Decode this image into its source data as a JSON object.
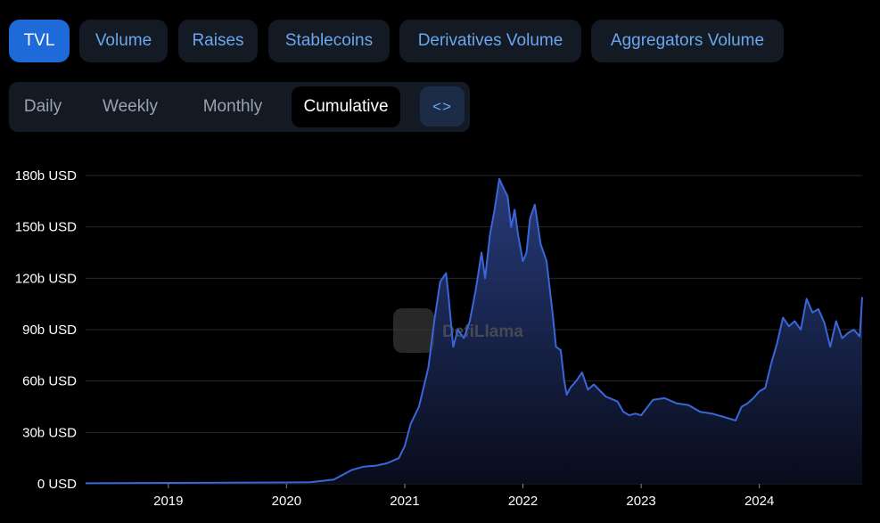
{
  "tabs": [
    {
      "label": "TVL",
      "active": true
    },
    {
      "label": "Volume",
      "active": false
    },
    {
      "label": "Raises",
      "active": false
    },
    {
      "label": "Stablecoins",
      "active": false
    },
    {
      "label": "Derivatives Volume",
      "active": false
    },
    {
      "label": "Aggregators Volume",
      "active": false
    }
  ],
  "periods": [
    {
      "label": "Daily",
      "active": false
    },
    {
      "label": "Weekly",
      "active": false
    },
    {
      "label": "Monthly",
      "active": false
    },
    {
      "label": "Cumulative",
      "active": true
    }
  ],
  "embed_icon": "code-embed-icon",
  "watermark": "DefiLlama",
  "colors": {
    "line": "#3a66d9",
    "accent": "#1e6ad8",
    "tab_text": "#6aa7ee"
  },
  "chart_data": {
    "type": "area",
    "xlabel": "",
    "ylabel": "",
    "y_ticks": [
      0,
      30,
      60,
      90,
      120,
      150,
      180
    ],
    "y_tick_labels": [
      "0 USD",
      "30b USD",
      "60b USD",
      "90b USD",
      "120b USD",
      "150b USD",
      "180b USD"
    ],
    "x_tick_labels": [
      "2019",
      "2020",
      "2021",
      "2022",
      "2023",
      "2024"
    ],
    "x_ticks": [
      2019,
      2020,
      2021,
      2022,
      2023,
      2024
    ],
    "xlim": [
      2018.3,
      2024.87
    ],
    "ylim": [
      0,
      180
    ],
    "grid": true,
    "series": [
      {
        "unit": "billion USD",
        "x": [
          2018.3,
          2019.0,
          2019.5,
          2020.0,
          2020.2,
          2020.4,
          2020.55,
          2020.65,
          2020.75,
          2020.85,
          2020.95,
          2021.0,
          2021.05,
          2021.12,
          2021.2,
          2021.25,
          2021.3,
          2021.35,
          2021.37,
          2021.41,
          2021.45,
          2021.5,
          2021.55,
          2021.6,
          2021.65,
          2021.68,
          2021.72,
          2021.76,
          2021.8,
          2021.84,
          2021.87,
          2021.9,
          2021.93,
          2021.96,
          2022.0,
          2022.03,
          2022.06,
          2022.1,
          2022.15,
          2022.2,
          2022.25,
          2022.28,
          2022.32,
          2022.35,
          2022.37,
          2022.4,
          2022.45,
          2022.5,
          2022.55,
          2022.6,
          2022.7,
          2022.8,
          2022.85,
          2022.9,
          2022.95,
          2023.0,
          2023.1,
          2023.2,
          2023.3,
          2023.4,
          2023.5,
          2023.6,
          2023.7,
          2023.75,
          2023.8,
          2023.85,
          2023.9,
          2023.95,
          2024.0,
          2024.05,
          2024.1,
          2024.15,
          2024.2,
          2024.25,
          2024.3,
          2024.35,
          2024.4,
          2024.45,
          2024.5,
          2024.55,
          2024.6,
          2024.65,
          2024.7,
          2024.75,
          2024.8,
          2024.85,
          2024.87
        ],
        "y": [
          0.3,
          0.5,
          0.6,
          0.8,
          0.9,
          2.5,
          8,
          10,
          10.5,
          12,
          15,
          22,
          35,
          45,
          68,
          95,
          118,
          123,
          110,
          80,
          90,
          85,
          95,
          113,
          135,
          120,
          145,
          160,
          178,
          172,
          168,
          150,
          160,
          145,
          130,
          135,
          155,
          163,
          140,
          130,
          100,
          80,
          78,
          60,
          52,
          56,
          60,
          65,
          55,
          58,
          51,
          48,
          42,
          40,
          41,
          40,
          49,
          50,
          47,
          46,
          42,
          41,
          39,
          38,
          37,
          45,
          47,
          50,
          54,
          56,
          70,
          82,
          97,
          92,
          95,
          90,
          108,
          100,
          102,
          94,
          80,
          95,
          85,
          88,
          90,
          86,
          109
        ]
      }
    ]
  }
}
